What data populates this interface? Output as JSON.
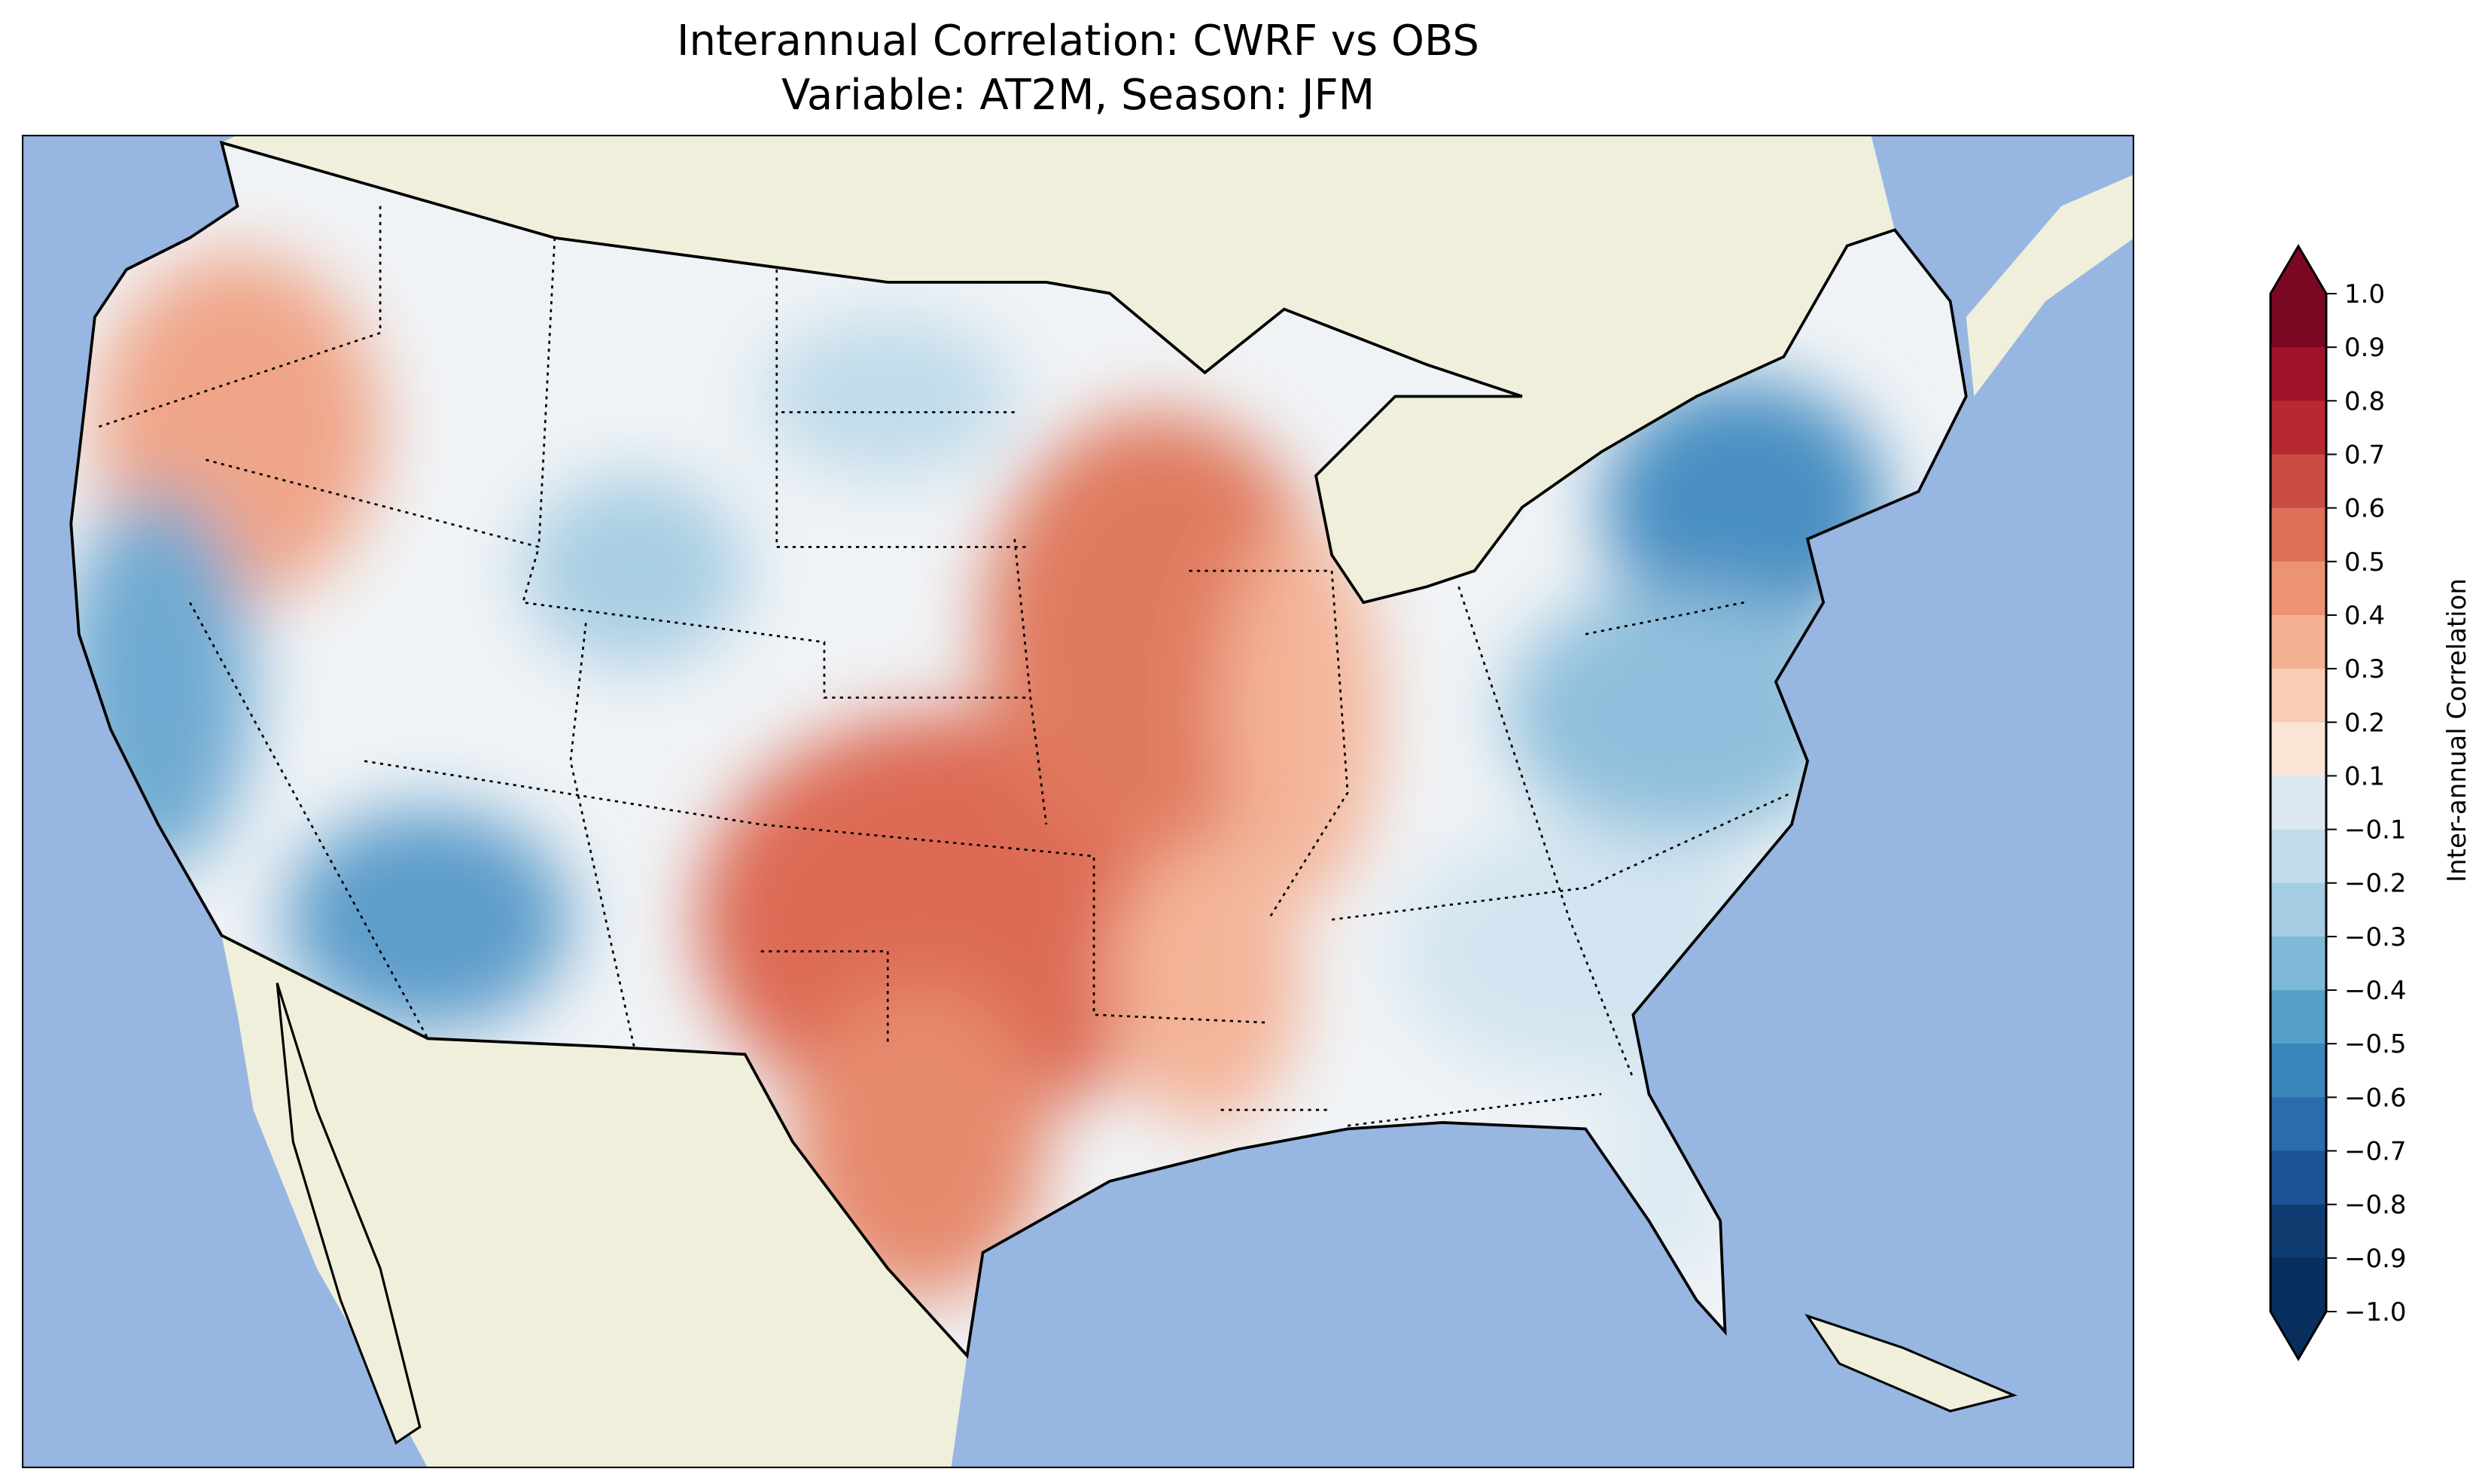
{
  "title": {
    "line1": "Interannual Correlation: CWRF vs OBS",
    "line2": "Variable: AT2M, Season: JFM"
  },
  "colors": {
    "ocean": "#97b6e1",
    "land": "#efefdb"
  },
  "chart_data": {
    "type": "heatmap",
    "title": "Interannual Correlation: CWRF vs OBS\nVariable: AT2M, Season: JFM",
    "variable": "AT2M",
    "season": "JFM",
    "colorbar": {
      "label": "Inter-annual Correlation",
      "range": [
        -1.0,
        1.0
      ],
      "extend": "both",
      "ticks": [
        "1.0",
        "0.9",
        "0.8",
        "0.7",
        "0.6",
        "0.5",
        "0.4",
        "0.3",
        "0.2",
        "0.1",
        "−0.1",
        "−0.2",
        "−0.3",
        "−0.4",
        "−0.5",
        "−0.6",
        "−0.7",
        "−0.8",
        "−0.9",
        "−1.0"
      ],
      "colors": [
        "#7a0822",
        "#9e1328",
        "#b92732",
        "#cb4c43",
        "#de7059",
        "#ec9374",
        "#f5b293",
        "#f9ccb4",
        "#fbe3d6",
        "#f5f5f5",
        "#dce9f2",
        "#c2dcea",
        "#a4cde2",
        "#80b8d7",
        "#569fc9",
        "#3985bc",
        "#2b6cac",
        "#1b5396",
        "#0f3c70",
        "#082f5e"
      ]
    }
  }
}
